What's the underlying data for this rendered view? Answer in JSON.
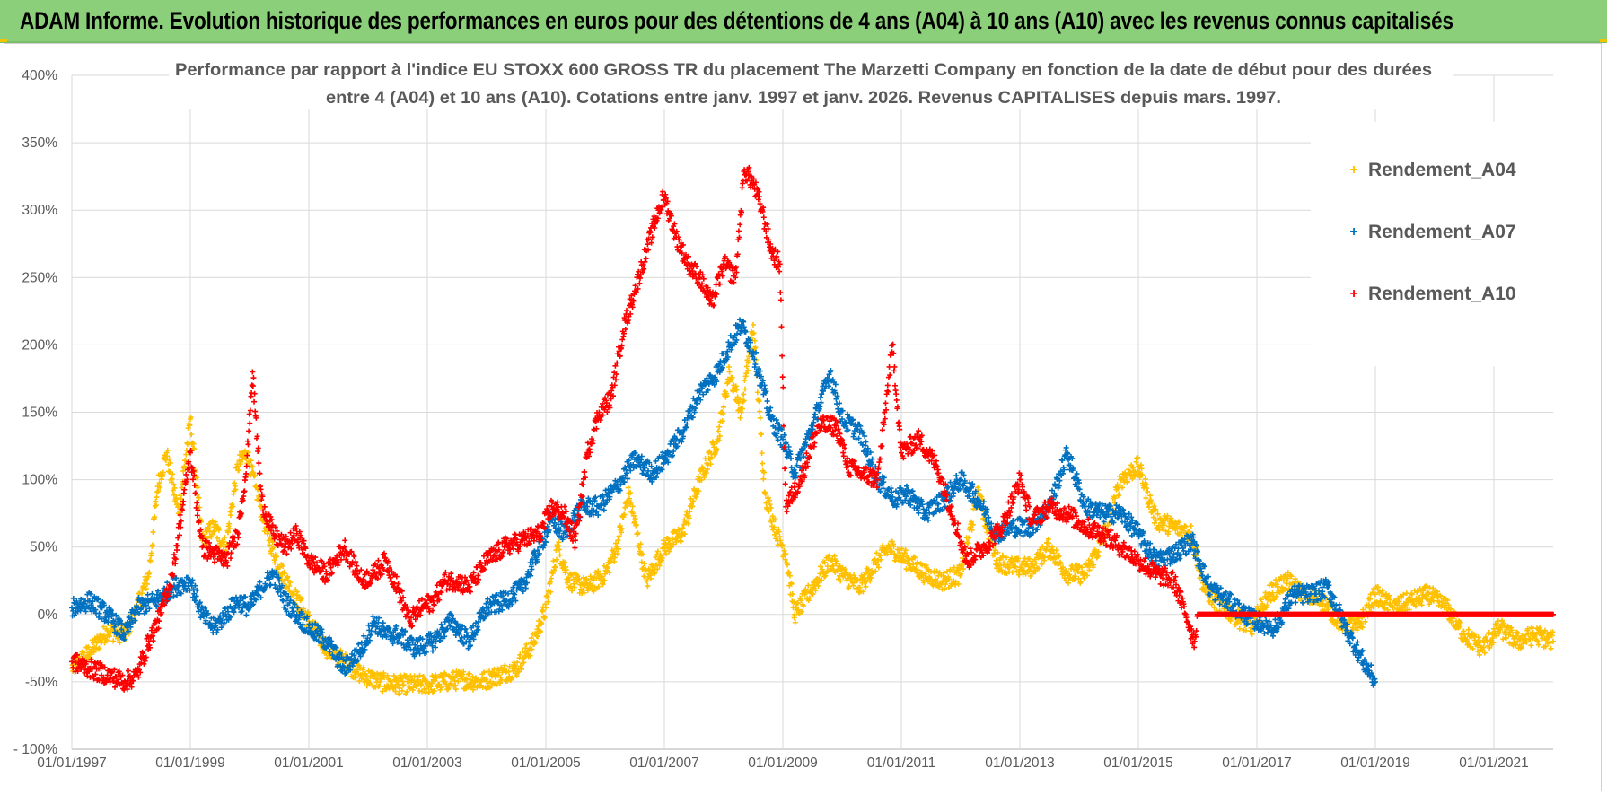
{
  "header": {
    "title": "ADAM Informe. Evolution historique des performances en euros pour des détentions de 4 ans (A04) à 10 ans (A10) avec les revenus connus capitalisés"
  },
  "colors": {
    "A04": "#ffc000",
    "A07": "#0070c0",
    "A10": "#ff0000"
  },
  "chart_data": {
    "type": "scatter",
    "title_line1": "Performance par rapport à l'indice EU STOXX 600 GROSS TR  du placement The Marzetti Company en fonction de la date de début pour des durées",
    "title_line2": "entre 4 (A04) et 10 ans (A10). Cotations entre janv. 1997 et janv. 2026. Revenus CAPITALISES depuis mars. 1997.",
    "xlabel": "",
    "ylabel": "",
    "xlim": [
      1997.0,
      2022.0
    ],
    "ylim": [
      -100,
      400
    ],
    "yticks": [
      400,
      350,
      300,
      250,
      200,
      150,
      100,
      50,
      0,
      -50,
      -100
    ],
    "ytick_labels": [
      "400%",
      "350%",
      "300%",
      "250%",
      "200%",
      "150%",
      "100%",
      "50%",
      "0%",
      "-50%",
      "- 100%"
    ],
    "xticks": [
      1997,
      1999,
      2001,
      2003,
      2005,
      2007,
      2009,
      2011,
      2013,
      2015,
      2017,
      2019,
      2021
    ],
    "xtick_labels": [
      "01/01/1997",
      "01/01/1999",
      "01/01/2001",
      "01/01/2003",
      "01/01/2005",
      "01/01/2007",
      "01/01/2009",
      "01/01/2011",
      "01/01/2013",
      "01/01/2015",
      "01/01/2017",
      "01/01/2019",
      "01/01/2021"
    ],
    "legend_position": "top-right",
    "series": [
      {
        "name": "Rendement_A04",
        "key": "A04",
        "x": [
          1997.0,
          1997.3,
          1997.6,
          1997.9,
          1998.1,
          1998.3,
          1998.45,
          1998.6,
          1998.8,
          1998.9,
          1999.0,
          1999.2,
          1999.4,
          1999.6,
          1999.8,
          1999.95,
          2000.1,
          2000.3,
          2000.5,
          2000.75,
          2001.0,
          2001.3,
          2001.6,
          2001.9,
          2002.2,
          2002.5,
          2002.8,
          2003.0,
          2003.3,
          2003.6,
          2003.9,
          2004.2,
          2004.5,
          2004.8,
          2005.0,
          2005.2,
          2005.4,
          2005.7,
          2006.0,
          2006.2,
          2006.4,
          2006.7,
          2007.0,
          2007.3,
          2007.6,
          2007.9,
          2008.1,
          2008.3,
          2008.5,
          2008.7,
          2008.9,
          2009.05,
          2009.2,
          2009.5,
          2009.8,
          2010.0,
          2010.3,
          2010.6,
          2010.8,
          2011.1,
          2011.4,
          2011.7,
          2012.0,
          2012.3,
          2012.6,
          2012.9,
          2013.2,
          2013.5,
          2013.8,
          2014.1,
          2014.4,
          2014.7,
          2015.0,
          2015.3,
          2015.6,
          2015.9,
          2016.1,
          2016.3,
          2016.6,
          2016.9,
          2017.2,
          2017.5,
          2017.8,
          2018.1,
          2018.4,
          2018.7,
          2019.0,
          2019.3,
          2019.6,
          2019.9,
          2020.2,
          2020.5,
          2020.8,
          2021.1,
          2021.4,
          2021.7,
          2022.0
        ],
        "y": [
          -40,
          -28,
          -12,
          -15,
          5,
          30,
          95,
          120,
          75,
          110,
          145,
          55,
          65,
          50,
          110,
          120,
          95,
          60,
          35,
          15,
          -5,
          -25,
          -35,
          -45,
          -50,
          -52,
          -52,
          -52,
          -50,
          -48,
          -50,
          -45,
          -40,
          -20,
          5,
          50,
          25,
          20,
          30,
          50,
          90,
          25,
          50,
          60,
          100,
          130,
          180,
          150,
          215,
          90,
          60,
          45,
          0,
          20,
          40,
          30,
          20,
          40,
          50,
          40,
          30,
          25,
          30,
          90,
          40,
          35,
          35,
          50,
          30,
          30,
          55,
          100,
          110,
          70,
          65,
          60,
          20,
          10,
          0,
          -10,
          15,
          25,
          15,
          10,
          -5,
          -10,
          15,
          5,
          10,
          15,
          5,
          -15,
          -25,
          -10,
          -20,
          -15,
          -20
        ]
      },
      {
        "name": "Rendement_A07",
        "key": "A07",
        "x": [
          1997.0,
          1997.3,
          1997.6,
          1997.9,
          1998.1,
          1998.4,
          1998.7,
          1999.0,
          1999.2,
          1999.4,
          1999.6,
          1999.8,
          2000.0,
          2000.2,
          2000.4,
          2000.6,
          2000.8,
          2001.0,
          2001.3,
          2001.6,
          2001.9,
          2002.1,
          2002.3,
          2002.5,
          2002.8,
          2003.1,
          2003.4,
          2003.7,
          2004.0,
          2004.3,
          2004.6,
          2004.9,
          2005.1,
          2005.3,
          2005.6,
          2005.9,
          2006.2,
          2006.5,
          2006.8,
          2007.0,
          2007.3,
          2007.6,
          2007.9,
          2008.1,
          2008.3,
          2008.5,
          2008.8,
          2009.0,
          2009.2,
          2009.5,
          2009.8,
          2010.0,
          2010.3,
          2010.6,
          2010.9,
          2011.1,
          2011.4,
          2011.7,
          2012.0,
          2012.3,
          2012.6,
          2012.9,
          2013.2,
          2013.5,
          2013.8,
          2014.1,
          2014.4,
          2014.7,
          2015.0,
          2015.3,
          2015.6,
          2015.9,
          2016.2,
          2016.5,
          2016.8,
          2017.0,
          2017.3,
          2017.6,
          2017.9,
          2018.2,
          2018.5,
          2018.8,
          2019.0
        ],
        "y": [
          5,
          10,
          0,
          -15,
          5,
          10,
          20,
          25,
          0,
          -10,
          0,
          10,
          5,
          20,
          30,
          10,
          0,
          -10,
          -20,
          -40,
          -25,
          -5,
          -15,
          -15,
          -25,
          -20,
          -5,
          -20,
          5,
          10,
          20,
          50,
          70,
          60,
          80,
          80,
          95,
          115,
          105,
          115,
          135,
          165,
          180,
          200,
          215,
          195,
          145,
          130,
          105,
          140,
          180,
          145,
          135,
          100,
          85,
          90,
          75,
          85,
          100,
          85,
          60,
          65,
          65,
          80,
          120,
          80,
          75,
          75,
          60,
          40,
          45,
          55,
          20,
          10,
          0,
          -5,
          -10,
          15,
          15,
          20,
          -10,
          -35,
          -50
        ]
      },
      {
        "name": "Rendement_A10",
        "key": "A10",
        "x": [
          1997.0,
          1997.3,
          1997.6,
          1997.9,
          1998.1,
          1998.3,
          1998.5,
          1998.7,
          1999.0,
          1999.2,
          1999.4,
          1999.6,
          1999.8,
          1999.95,
          2000.05,
          2000.2,
          2000.4,
          2000.6,
          2000.8,
          2001.0,
          2001.3,
          2001.6,
          2001.9,
          2002.1,
          2002.3,
          2002.5,
          2002.7,
          2002.9,
          2003.1,
          2003.3,
          2003.5,
          2003.7,
          2004.0,
          2004.3,
          2004.6,
          2004.9,
          2005.1,
          2005.3,
          2005.5,
          2005.7,
          2005.9,
          2006.1,
          2006.3,
          2006.5,
          2006.7,
          2006.9,
          2007.0,
          2007.2,
          2007.4,
          2007.6,
          2007.8,
          2008.0,
          2008.2,
          2008.35,
          2008.5,
          2008.65,
          2008.8,
          2008.95,
          2009.05,
          2009.3,
          2009.6,
          2009.9,
          2010.1,
          2010.3,
          2010.6,
          2010.85,
          2011.0,
          2011.3,
          2011.6,
          2011.9,
          2012.1,
          2012.4,
          2012.7,
          2013.0,
          2013.2,
          2013.5,
          2013.8,
          2014.1,
          2014.4,
          2014.7,
          2015.0,
          2015.3,
          2015.6,
          2015.8,
          2015.95,
          2016.0,
          2016.5,
          2017.0,
          2017.5,
          2018.0,
          2018.5,
          2019.0,
          2019.5,
          2020.0,
          2020.5,
          2021.0,
          2021.5,
          2022.0
        ],
        "y": [
          -35,
          -40,
          -45,
          -50,
          -45,
          -20,
          0,
          30,
          120,
          50,
          45,
          40,
          60,
          110,
          180,
          85,
          60,
          50,
          60,
          40,
          30,
          50,
          25,
          30,
          40,
          20,
          -5,
          5,
          10,
          25,
          25,
          20,
          40,
          50,
          55,
          60,
          80,
          75,
          55,
          120,
          150,
          160,
          210,
          240,
          270,
          300,
          310,
          280,
          260,
          250,
          230,
          260,
          250,
          330,
          320,
          300,
          270,
          260,
          80,
          100,
          140,
          140,
          110,
          105,
          100,
          200,
          120,
          130,
          110,
          70,
          40,
          50,
          65,
          100,
          70,
          80,
          75,
          65,
          60,
          50,
          40,
          30,
          25,
          0,
          -20,
          0,
          0,
          0,
          0,
          0,
          0,
          0,
          0,
          0,
          0,
          0,
          0,
          0
        ]
      }
    ],
    "legend": [
      "Rendement_A04",
      "Rendement_A07",
      "Rendement_A10"
    ]
  }
}
